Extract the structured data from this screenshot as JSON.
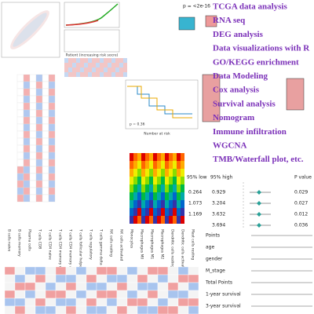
{
  "services": [
    "TCGA data analysis",
    "RNA seq",
    "DEG analysis",
    "Data visualizations with R",
    "GO/KEGG enrichment",
    "Data Modeling",
    "Cox analysis",
    "Survival analysis",
    "Nomogram",
    "Immune infiltration",
    "WGCNA",
    "TMB/Waterfall plot, etc."
  ],
  "boxplot": {
    "p_value": "p = <2e-16"
  },
  "risk": {
    "xlabel": "Patient (increasing risk socre)"
  },
  "km": {
    "p_value": "p = 0.36",
    "risk_table": "Number at risk"
  },
  "forest": {
    "header": [
      "95% low",
      "95% high",
      "P value"
    ],
    "rows": [
      {
        "low": "0.264",
        "high": "0.929",
        "p": "0.029"
      },
      {
        "low": "1.073",
        "high": "3.204",
        "p": "0.027"
      },
      {
        "low": "1.169",
        "high": "3.632",
        "p": "0.012"
      },
      {
        "high": "3.694",
        "p": "0.036"
      }
    ]
  },
  "nomogram": {
    "rows": [
      "Points",
      "age",
      "gender",
      "M_stage",
      "Total Points",
      "1-year survival",
      "3-year survival"
    ]
  },
  "immune_table": {
    "columns": [
      "B cells naive",
      "B cells memory",
      "Plasma cells",
      "T cells CD8",
      "T cells CD4 naive",
      "T cells CD4 memory resting",
      "T cells CD4 memory activated",
      "T cells follicular helper",
      "T cells regulatory",
      "T cells gamma delta",
      "NK cells resting",
      "NK cells activated",
      "Monocytes",
      "Macrophages M0",
      "Macrophages M1",
      "Macrophages M2",
      "Dendritic cells resting",
      "Dendritic cells activated",
      "Mast cells resting"
    ]
  }
}
